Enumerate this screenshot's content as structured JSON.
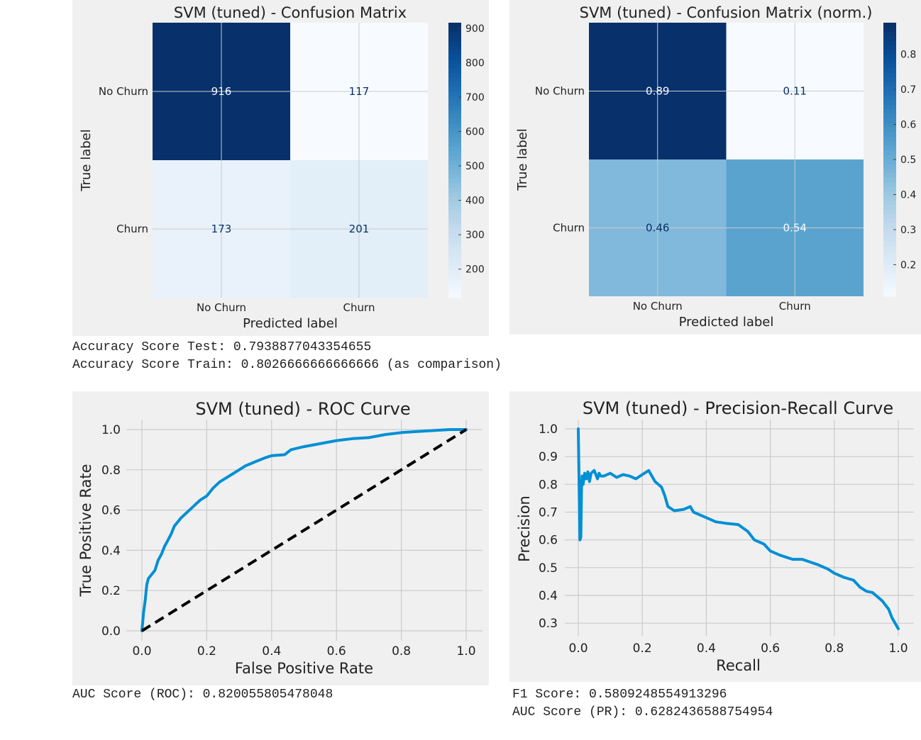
{
  "chart_data": [
    {
      "type": "heatmap",
      "title": "SVM (tuned) - Confusion Matrix",
      "xlabel": "Predicted label",
      "ylabel": "True label",
      "x_categories": [
        "No Churn",
        "Churn"
      ],
      "y_categories": [
        "No Churn",
        "Churn"
      ],
      "values": [
        [
          916,
          117
        ],
        [
          173,
          201
        ]
      ],
      "value_labels": [
        [
          "916",
          "117"
        ],
        [
          "173",
          "201"
        ]
      ],
      "colormap": "Blues",
      "vrange": [
        117,
        916
      ],
      "colorbar_ticks": [
        "900",
        "800",
        "700",
        "600",
        "500",
        "400",
        "300",
        "200"
      ]
    },
    {
      "type": "heatmap",
      "title": "SVM (tuned) - Confusion Matrix (norm.)",
      "xlabel": "Predicted label",
      "ylabel": "True label",
      "x_categories": [
        "No Churn",
        "Churn"
      ],
      "y_categories": [
        "No Churn",
        "Churn"
      ],
      "values": [
        [
          0.89,
          0.11
        ],
        [
          0.46,
          0.54
        ]
      ],
      "value_labels": [
        [
          "0.89",
          "0.11"
        ],
        [
          "0.46",
          "0.54"
        ]
      ],
      "colormap": "Blues",
      "vrange": [
        0.11,
        0.89
      ],
      "colorbar_ticks": [
        "0.8",
        "0.7",
        "0.6",
        "0.5",
        "0.4",
        "0.3",
        "0.2"
      ]
    },
    {
      "type": "line",
      "title": "SVM (tuned) - ROC Curve",
      "xlabel": "False Positive Rate",
      "ylabel": "True Positive Rate",
      "xlim": [
        0.0,
        1.0
      ],
      "ylim": [
        0.0,
        1.0
      ],
      "xticks": [
        "0.0",
        "0.2",
        "0.4",
        "0.6",
        "0.8",
        "1.0"
      ],
      "yticks": [
        "0.0",
        "0.2",
        "0.4",
        "0.6",
        "0.8",
        "1.0"
      ],
      "grid": true,
      "series": [
        {
          "style": "solid",
          "color": "#008fd5",
          "x": [
            0.0,
            0.005,
            0.01,
            0.015,
            0.02,
            0.03,
            0.04,
            0.05,
            0.06,
            0.07,
            0.08,
            0.09,
            0.1,
            0.11,
            0.12,
            0.14,
            0.16,
            0.18,
            0.2,
            0.22,
            0.24,
            0.26,
            0.28,
            0.3,
            0.32,
            0.35,
            0.38,
            0.4,
            0.44,
            0.46,
            0.5,
            0.55,
            0.6,
            0.65,
            0.7,
            0.75,
            0.8,
            0.85,
            0.9,
            0.95,
            1.0
          ],
          "y": [
            0.0,
            0.09,
            0.15,
            0.23,
            0.26,
            0.28,
            0.3,
            0.35,
            0.38,
            0.42,
            0.45,
            0.48,
            0.52,
            0.54,
            0.56,
            0.59,
            0.62,
            0.65,
            0.67,
            0.71,
            0.74,
            0.76,
            0.78,
            0.8,
            0.82,
            0.84,
            0.86,
            0.87,
            0.875,
            0.9,
            0.915,
            0.93,
            0.945,
            0.955,
            0.96,
            0.975,
            0.985,
            0.99,
            0.995,
            1.0,
            1.0
          ]
        },
        {
          "style": "dashed",
          "color": "#000000",
          "x": [
            0.0,
            1.0
          ],
          "y": [
            0.0,
            1.0
          ]
        }
      ]
    },
    {
      "type": "line",
      "title": "SVM (tuned) - Precision-Recall Curve",
      "xlabel": "Recall",
      "ylabel": "Precision",
      "xlim": [
        0.0,
        1.0
      ],
      "ylim": [
        0.28,
        1.0
      ],
      "xticks": [
        "0.0",
        "0.2",
        "0.4",
        "0.6",
        "0.8",
        "1.0"
      ],
      "yticks": [
        "1.0",
        "0.9",
        "0.8",
        "0.7",
        "0.6",
        "0.5",
        "0.4",
        "0.3"
      ],
      "grid": true,
      "series": [
        {
          "style": "solid",
          "color": "#008fd5",
          "x": [
            0.0,
            0.005,
            0.008,
            0.01,
            0.012,
            0.015,
            0.02,
            0.025,
            0.03,
            0.035,
            0.04,
            0.05,
            0.06,
            0.065,
            0.07,
            0.08,
            0.1,
            0.12,
            0.14,
            0.16,
            0.18,
            0.2,
            0.22,
            0.23,
            0.24,
            0.26,
            0.27,
            0.28,
            0.3,
            0.33,
            0.35,
            0.36,
            0.4,
            0.43,
            0.46,
            0.5,
            0.53,
            0.55,
            0.58,
            0.6,
            0.63,
            0.67,
            0.7,
            0.75,
            0.78,
            0.8,
            0.83,
            0.86,
            0.88,
            0.9,
            0.92,
            0.95,
            0.97,
            0.98,
            0.99,
            1.0
          ],
          "y": [
            1.0,
            0.6,
            0.61,
            0.78,
            0.83,
            0.8,
            0.84,
            0.82,
            0.845,
            0.81,
            0.84,
            0.85,
            0.82,
            0.84,
            0.83,
            0.83,
            0.84,
            0.825,
            0.835,
            0.83,
            0.82,
            0.835,
            0.85,
            0.83,
            0.81,
            0.79,
            0.76,
            0.72,
            0.705,
            0.71,
            0.72,
            0.7,
            0.68,
            0.665,
            0.66,
            0.655,
            0.63,
            0.6,
            0.585,
            0.56,
            0.545,
            0.53,
            0.53,
            0.51,
            0.495,
            0.48,
            0.465,
            0.455,
            0.43,
            0.415,
            0.41,
            0.38,
            0.35,
            0.32,
            0.3,
            0.28
          ]
        }
      ]
    }
  ],
  "text_outputs": {
    "accuracy_test": "Accuracy Score Test: 0.7938877043354655",
    "accuracy_train": "Accuracy Score Train: 0.8026666666666666 (as comparison)",
    "auc_roc": "AUC Score (ROC): 0.820055805478048",
    "f1": "F1 Score: 0.5809248554913296",
    "auc_pr": "AUC Score (PR): 0.6282436588754954"
  },
  "colors": {
    "panel_bg": "#f0f0f0",
    "grid": "#cbcbcb",
    "curve": "#008fd5",
    "diagonal": "#000000",
    "cm_dark": "#08306b",
    "cm_light": "#f7fbff"
  }
}
